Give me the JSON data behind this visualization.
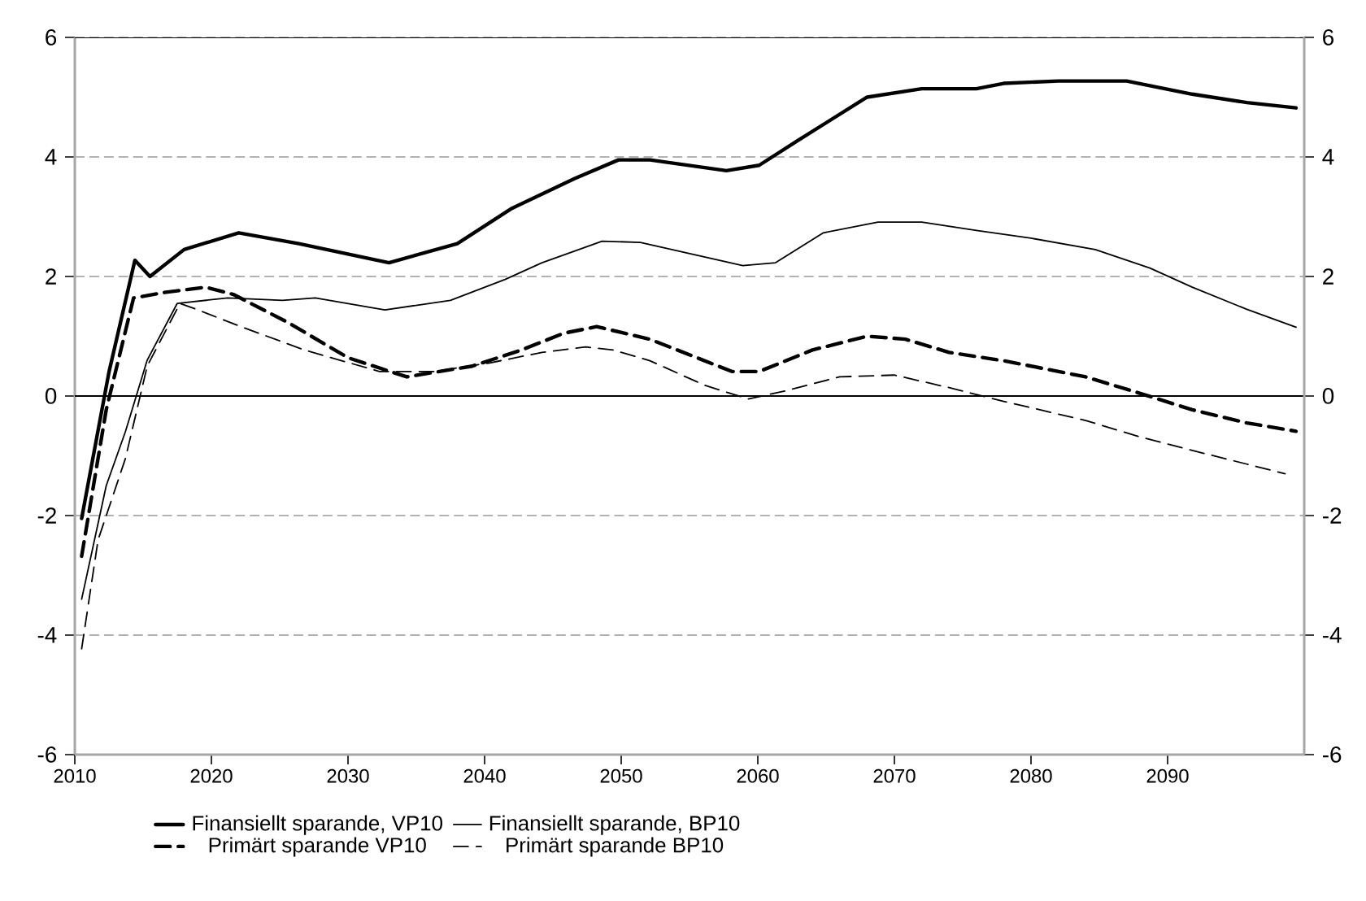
{
  "chart_data": {
    "type": "line",
    "xlim": [
      2010,
      2100
    ],
    "xticks": [
      2010,
      2020,
      2030,
      2040,
      2050,
      2060,
      2070,
      2080,
      2090
    ],
    "ylim": [
      -6,
      6
    ],
    "yticks": [
      -6,
      -4,
      -2,
      0,
      2,
      4,
      6
    ],
    "y2lim": [
      -6,
      6
    ],
    "y2ticks": [
      -6,
      -4,
      -2,
      0,
      2,
      4,
      6
    ],
    "grid": "y",
    "legend": "bottom",
    "ref_lines": [
      {
        "axis": "y",
        "value": 0,
        "color": "#000000",
        "line_style": "solid"
      }
    ],
    "series": [
      {
        "name": "Finansiellt sparande, VP10",
        "color": "#000000",
        "line_style": "solid",
        "x": [
          2010.5,
          2012.5,
          2014.4,
          2015.5,
          2018,
          2022,
          2026.4,
          2033,
          2038,
          2042,
          2046.6,
          2049.8,
          2052.1,
          2057.7,
          2060.1,
          2062.9,
          2068,
          2072,
          2076,
          2078,
          2082,
          2087,
          2091.8,
          2095.8,
          2099.4
        ],
        "values": [
          -2.05,
          0.4,
          2.27,
          2.0,
          2.45,
          2.73,
          2.55,
          2.23,
          2.55,
          3.14,
          3.64,
          3.95,
          3.95,
          3.77,
          3.86,
          4.27,
          5.0,
          5.14,
          5.14,
          5.23,
          5.27,
          5.27,
          5.05,
          4.91,
          4.82
        ]
      },
      {
        "name": "Finansiellt sparande, BP10",
        "color": "#000000",
        "line_style": "solid",
        "x": [
          2010.5,
          2012.3,
          2013.7,
          2015.3,
          2017.5,
          2021.2,
          2025.2,
          2027.6,
          2032.7,
          2037.5,
          2041.5,
          2044.2,
          2048.6,
          2051.4,
          2058.9,
          2061.3,
          2064.8,
          2068.8,
          2072,
          2076,
          2080,
          2084.7,
          2088.7,
          2091.8,
          2095.8,
          2099.4
        ],
        "values": [
          -3.4,
          -1.5,
          -0.6,
          0.6,
          1.55,
          1.64,
          1.6,
          1.64,
          1.44,
          1.6,
          1.95,
          2.23,
          2.59,
          2.57,
          2.18,
          2.23,
          2.73,
          2.91,
          2.91,
          2.77,
          2.64,
          2.45,
          2.14,
          1.82,
          1.45,
          1.15
        ]
      },
      {
        "name": "Primärt sparande VP10",
        "color": "#000000",
        "line_style": "dashed",
        "x": [
          2010.5,
          2012.3,
          2014.3,
          2016.5,
          2019.6,
          2021.6,
          2025.6,
          2030,
          2034.3,
          2039.1,
          2042.7,
          2045.8,
          2048.2,
          2052.1,
          2058.1,
          2060.1,
          2064,
          2068,
          2070.8,
          2074,
          2078,
          2084,
          2087.9,
          2091.8,
          2095.8,
          2099.4
        ],
        "values": [
          -2.68,
          -0.23,
          1.64,
          1.73,
          1.82,
          1.7,
          1.23,
          0.64,
          0.32,
          0.5,
          0.77,
          1.05,
          1.16,
          0.95,
          0.41,
          0.41,
          0.77,
          1.0,
          0.95,
          0.73,
          0.59,
          0.32,
          0.05,
          -0.23,
          -0.45,
          -0.59
        ]
      },
      {
        "name": "Primärt sparande BP10",
        "color": "#000000",
        "line_style": "dashed",
        "x": [
          2010.5,
          2011.7,
          2013.7,
          2015.3,
          2017.7,
          2018.9,
          2022.4,
          2026.8,
          2032.3,
          2036.3,
          2040.3,
          2044.2,
          2047.4,
          2049.4,
          2052.1,
          2056.1,
          2059.3,
          2062.1,
          2066,
          2070,
          2074,
          2078,
          2084,
          2087.9,
          2091.8,
          2095.8,
          2098.6
        ],
        "values": [
          -4.23,
          -2.41,
          -1.05,
          0.5,
          1.55,
          1.45,
          1.14,
          0.77,
          0.41,
          0.41,
          0.55,
          0.73,
          0.82,
          0.77,
          0.59,
          0.18,
          -0.05,
          0.09,
          0.32,
          0.35,
          0.14,
          -0.09,
          -0.41,
          -0.68,
          -0.91,
          -1.14,
          -1.3
        ]
      }
    ]
  }
}
